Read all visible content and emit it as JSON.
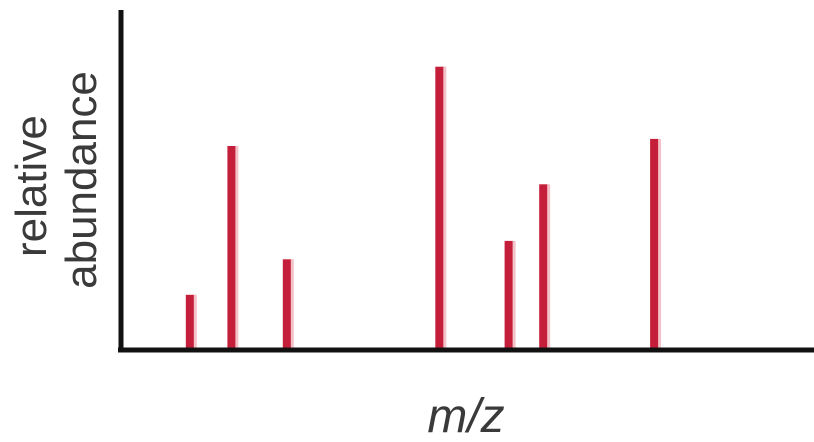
{
  "chart_data": {
    "type": "bar",
    "subtype": "stick-spectrum",
    "title": "",
    "xlabel": "m/z",
    "ylabel_lines": [
      "relative",
      "abundance"
    ],
    "ylabel": "relative abundance",
    "x": [
      1.0,
      1.6,
      2.4,
      4.6,
      5.6,
      6.1,
      7.7
    ],
    "values": [
      0.195,
      0.72,
      0.32,
      1.0,
      0.385,
      0.585,
      0.745
    ],
    "xlim": [
      0,
      10
    ],
    "ylim": [
      0,
      1.2
    ],
    "grid": false,
    "legend": "none",
    "tick_labels": false
  },
  "colors": {
    "bar": "#c41e3a",
    "bar_highlight": "#f3c2c8",
    "axis": "#111111",
    "label": "#3a3a3a"
  }
}
